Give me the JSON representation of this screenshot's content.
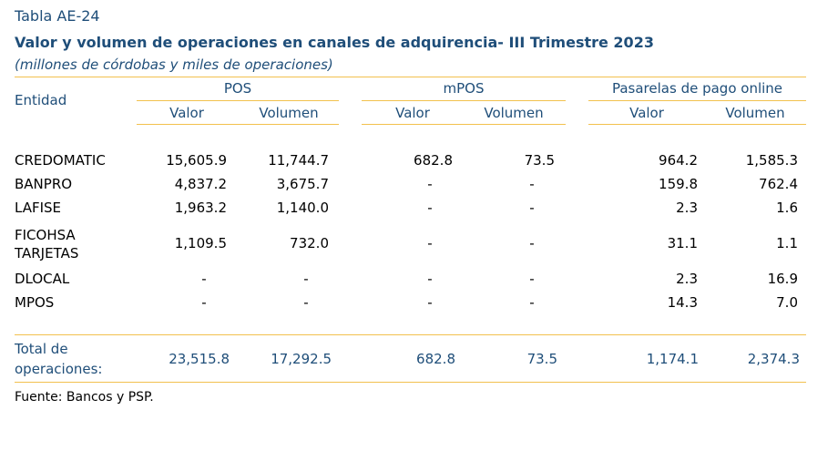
{
  "table": {
    "id_label": "Tabla AE-24",
    "title": "Valor y volumen de operaciones en canales de adquirencia- III Trimestre 2023",
    "subtitle": "(millones de córdobas y miles de operaciones)",
    "header": {
      "entity": "Entidad",
      "groups": [
        "POS",
        "mPOS",
        "Pasarelas de pago online"
      ],
      "sub": [
        "Valor",
        "Volumen"
      ]
    },
    "rows": [
      {
        "entity": [
          "CREDOMATIC"
        ],
        "values": [
          "15,605.9",
          "11,744.7",
          "682.8",
          "73.5",
          "964.2",
          "1,585.3"
        ]
      },
      {
        "entity": [
          "BANPRO"
        ],
        "values": [
          "4,837.2",
          "3,675.7",
          "-",
          "-",
          "159.8",
          "762.4"
        ]
      },
      {
        "entity": [
          "LAFISE"
        ],
        "values": [
          "1,963.2",
          "1,140.0",
          "-",
          "-",
          "2.3",
          "1.6"
        ]
      },
      {
        "entity": [
          "FICOHSA",
          "TARJETAS"
        ],
        "values": [
          "1,109.5",
          "732.0",
          "-",
          "-",
          "31.1",
          "1.1"
        ]
      },
      {
        "entity": [
          "DLOCAL"
        ],
        "values": [
          "-",
          "-",
          "-",
          "-",
          "2.3",
          "16.9"
        ]
      },
      {
        "entity": [
          "MPOS"
        ],
        "values": [
          "-",
          "-",
          "-",
          "-",
          "14.3",
          "7.0"
        ]
      }
    ],
    "total": {
      "label": [
        "Total de",
        "operaciones:"
      ],
      "values": [
        "23,515.8",
        "17,292.5",
        "682.8",
        "73.5",
        "1,174.1",
        "2,374.3"
      ]
    },
    "source": "Fuente: Bancos y PSP."
  }
}
